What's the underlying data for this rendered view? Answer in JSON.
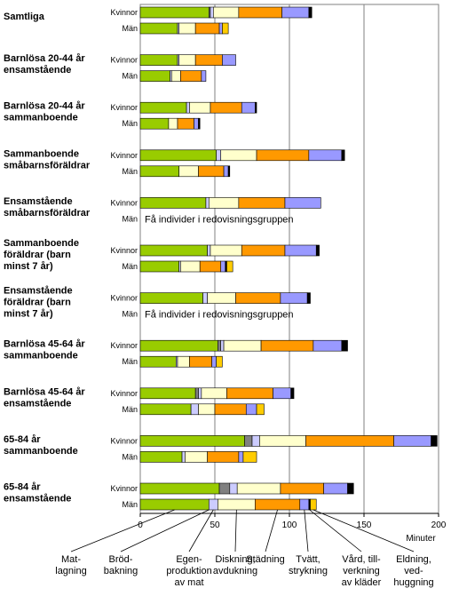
{
  "chart_data": {
    "type": "bar",
    "stacked": true,
    "orientation": "horizontal",
    "x_unit": "Minuter",
    "xlim": [
      0,
      200
    ],
    "x_ticks": [
      0,
      50,
      100,
      150,
      200
    ],
    "grid": "vertical",
    "series": [
      {
        "name": "Matlagning",
        "color": "#99cc00"
      },
      {
        "name": "Brödbakning",
        "color": "#808080"
      },
      {
        "name": "Egenproduktion av mat",
        "color": "#ccccff"
      },
      {
        "name": "Diskning, avdukning",
        "color": "#ffffcc"
      },
      {
        "name": "Städning",
        "color": "#ff9900"
      },
      {
        "name": "Tvätt, strykning",
        "color": "#9999ff"
      },
      {
        "name": "Vård, tillverkning av kläder",
        "color": "#000000"
      },
      {
        "name": "Eldning, vedhuggning",
        "color": "#ffcc00"
      }
    ],
    "sex_labels": [
      "Kvinnor",
      "Män"
    ],
    "groups": [
      {
        "lines": [
          "Samtliga"
        ],
        "kvinnor": [
          46,
          1,
          2,
          17,
          29,
          18,
          2,
          0
        ],
        "man": [
          25,
          0,
          1,
          11,
          16,
          2,
          0,
          4
        ],
        "note": ""
      },
      {
        "lines": [
          "Barnlösa 20-44 år",
          "ensamstående"
        ],
        "kvinnor": [
          25,
          0,
          1,
          11,
          18,
          9,
          0,
          0
        ],
        "man": [
          20,
          0,
          1,
          6,
          14,
          3,
          0,
          0
        ],
        "note": ""
      },
      {
        "lines": [
          "Barnlösa 20-44 år",
          "sammanboende"
        ],
        "kvinnor": [
          31,
          0,
          2,
          14,
          21,
          9,
          1,
          0
        ],
        "man": [
          19,
          0,
          0,
          6,
          11,
          3,
          1,
          0
        ],
        "note": ""
      },
      {
        "lines": [
          "Sammanboende",
          "småbarnsföräldrar"
        ],
        "kvinnor": [
          51,
          0,
          3,
          24,
          35,
          22,
          2,
          0
        ],
        "man": [
          26,
          0,
          0,
          13,
          17,
          3,
          1,
          0
        ],
        "note": ""
      },
      {
        "lines": [
          "Ensamstående",
          "småbarnsföräldrar"
        ],
        "kvinnor": [
          44,
          0,
          2,
          20,
          31,
          24,
          0,
          0
        ],
        "man": null,
        "note": "Få individer i redovisningsgruppen"
      },
      {
        "lines": [
          "Sammanboende",
          "föräldrar (barn",
          "minst 7 år)"
        ],
        "kvinnor": [
          45,
          0,
          2,
          21,
          29,
          21,
          2,
          0
        ],
        "man": [
          26,
          0,
          1,
          13,
          14,
          3,
          1,
          4
        ],
        "note": ""
      },
      {
        "lines": [
          "Ensamstående",
          "föräldrar (barn",
          "minst 7 år)"
        ],
        "kvinnor": [
          42,
          0,
          3,
          19,
          30,
          18,
          2,
          0
        ],
        "man": null,
        "note": "Få individer i redovisningsgruppen"
      },
      {
        "lines": [
          "Barnlösa 45-64 år",
          "sammanboende"
        ],
        "kvinnor": [
          52,
          2,
          2,
          25,
          35,
          19,
          4,
          0
        ],
        "man": [
          24,
          0,
          1,
          8,
          15,
          3,
          0,
          4
        ],
        "note": ""
      },
      {
        "lines": [
          "Barnlösa 45-64 år",
          "ensamstående"
        ],
        "kvinnor": [
          37,
          2,
          2,
          17,
          31,
          12,
          2,
          0
        ],
        "man": [
          34,
          0,
          5,
          11,
          21,
          7,
          0,
          5
        ],
        "note": ""
      },
      {
        "lines": [
          "65-84 år",
          "sammanboende"
        ],
        "kvinnor": [
          70,
          5,
          5,
          31,
          59,
          25,
          4,
          0
        ],
        "man": [
          28,
          0,
          2,
          15,
          21,
          3,
          0,
          9
        ],
        "note": ""
      },
      {
        "lines": [
          "65-84 år",
          "ensamstående"
        ],
        "kvinnor": [
          53,
          7,
          5,
          29,
          29,
          16,
          4,
          0
        ],
        "man": [
          46,
          0,
          6,
          25,
          30,
          6,
          1,
          4
        ],
        "note": ""
      }
    ],
    "bottom_labels": [
      {
        "lines": [
          "Mat-",
          "lagning"
        ],
        "series": 0
      },
      {
        "lines": [
          "Bröd-",
          "bakning"
        ],
        "series": 1
      },
      {
        "lines": [
          "Egen-",
          "produktion",
          "av mat"
        ],
        "series": 2
      },
      {
        "lines": [
          "Diskning,",
          "avdukning"
        ],
        "series": 3
      },
      {
        "lines": [
          "Städning"
        ],
        "series": 4
      },
      {
        "lines": [
          "Tvätt,",
          "strykning"
        ],
        "series": 5
      },
      {
        "lines": [
          "Vård, till-",
          "verkning",
          "av kläder"
        ],
        "series": 6
      },
      {
        "lines": [
          "Eldning,",
          "ved-",
          "huggning"
        ],
        "series": 7
      }
    ]
  }
}
